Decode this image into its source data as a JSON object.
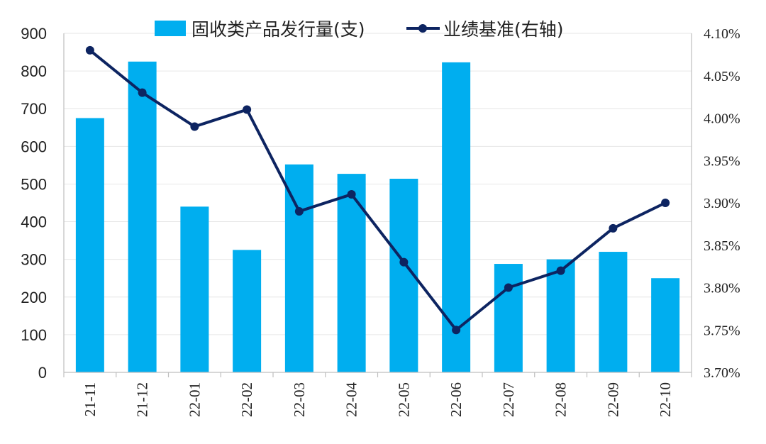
{
  "colors": {
    "bar": "#00aeef",
    "line": "#0d2461",
    "grid": "#e6e6e6",
    "axis": "#bfbfbf"
  },
  "legend": {
    "bar_label": "固收类产品发行量(支)",
    "line_label": "业绩基准(右轴)"
  },
  "chart_data": {
    "type": "bar",
    "title": "",
    "categories": [
      "21-11",
      "21-12",
      "22-01",
      "22-02",
      "22-03",
      "22-04",
      "22-05",
      "22-06",
      "22-07",
      "22-08",
      "22-09",
      "22-10"
    ],
    "series": [
      {
        "name": "固收类产品发行量(支)",
        "kind": "bar",
        "axis": "left",
        "values": [
          675,
          825,
          440,
          325,
          552,
          527,
          514,
          823,
          288,
          300,
          320,
          250
        ]
      },
      {
        "name": "业绩基准(右轴)",
        "kind": "line",
        "axis": "right",
        "values": [
          4.08,
          4.03,
          3.99,
          4.01,
          3.89,
          3.91,
          3.83,
          3.75,
          3.8,
          3.82,
          3.87,
          3.9
        ]
      }
    ],
    "left_axis": {
      "min": 0,
      "max": 900,
      "step": 100,
      "tick_labels": [
        "0",
        "100",
        "200",
        "300",
        "400",
        "500",
        "600",
        "700",
        "800",
        "900"
      ]
    },
    "right_axis": {
      "min": 3.7,
      "max": 4.1,
      "step": 0.05,
      "tick_labels": [
        "3.70%",
        "3.75%",
        "3.80%",
        "3.85%",
        "3.90%",
        "3.95%",
        "4.00%",
        "4.05%",
        "4.10%"
      ]
    },
    "grid": true,
    "legend_position": "top-center"
  }
}
